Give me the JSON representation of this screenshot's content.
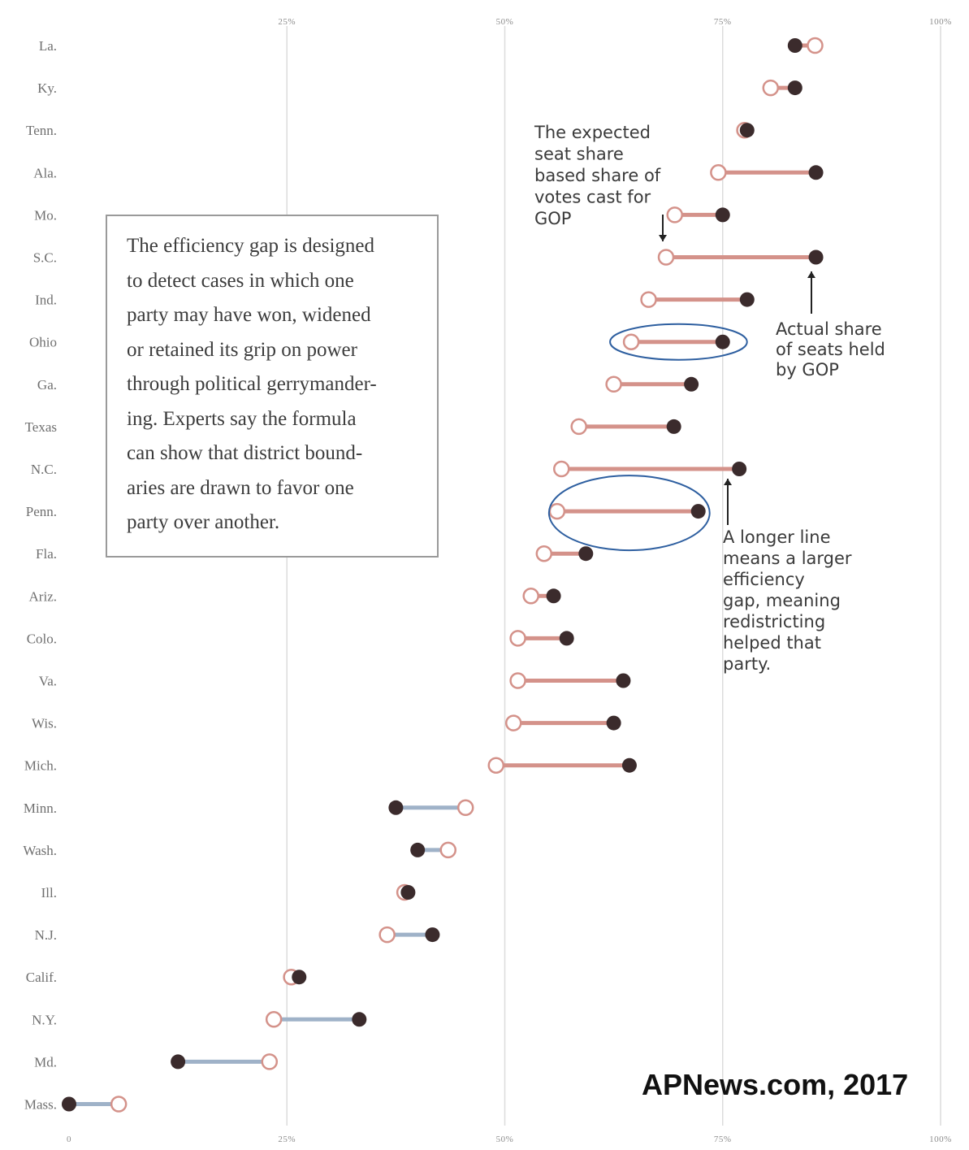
{
  "chart_data": {
    "type": "dumbbell",
    "x_ticks": [
      "25%",
      "50%",
      "75%",
      "100%"
    ],
    "x_ticks_bottom": [
      "0",
      "25%",
      "50%",
      "75%",
      "100%"
    ],
    "xlim": [
      0,
      100
    ],
    "grid": true,
    "colors": {
      "gop_line": "#d4928a",
      "dem_line": "#9fb2c8",
      "actual_dot": "#3b2b2c",
      "expected_dot_stroke": "#d4928a",
      "grid": "#dcdcdc",
      "highlight_ellipse": "#2e5fa0"
    },
    "states": [
      {
        "state": "La.",
        "expected": 85.6,
        "actual": 83.3,
        "party": "gop"
      },
      {
        "state": "Ky.",
        "expected": 80.5,
        "actual": 83.3,
        "party": "gop"
      },
      {
        "state": "Tenn.",
        "expected": 77.5,
        "actual": 77.8,
        "party": "gop"
      },
      {
        "state": "Ala.",
        "expected": 74.5,
        "actual": 85.7,
        "party": "gop"
      },
      {
        "state": "Mo.",
        "expected": 69.5,
        "actual": 75.0,
        "party": "gop"
      },
      {
        "state": "S.C.",
        "expected": 68.5,
        "actual": 85.7,
        "party": "gop"
      },
      {
        "state": "Ind.",
        "expected": 66.5,
        "actual": 77.8,
        "party": "gop"
      },
      {
        "state": "Ohio",
        "expected": 64.5,
        "actual": 75.0,
        "party": "gop",
        "highlighted": true
      },
      {
        "state": "Ga.",
        "expected": 62.5,
        "actual": 71.4,
        "party": "gop"
      },
      {
        "state": "Texas",
        "expected": 58.5,
        "actual": 69.4,
        "party": "gop"
      },
      {
        "state": "N.C.",
        "expected": 56.5,
        "actual": 76.9,
        "party": "gop"
      },
      {
        "state": "Penn.",
        "expected": 56.0,
        "actual": 72.2,
        "party": "gop",
        "highlighted": true
      },
      {
        "state": "Fla.",
        "expected": 54.5,
        "actual": 59.3,
        "party": "gop"
      },
      {
        "state": "Ariz.",
        "expected": 53.0,
        "actual": 55.6,
        "party": "gop"
      },
      {
        "state": "Colo.",
        "expected": 51.5,
        "actual": 57.1,
        "party": "gop"
      },
      {
        "state": "Va.",
        "expected": 51.5,
        "actual": 63.6,
        "party": "gop"
      },
      {
        "state": "Wis.",
        "expected": 51.0,
        "actual": 62.5,
        "party": "gop"
      },
      {
        "state": "Mich.",
        "expected": 49.0,
        "actual": 64.3,
        "party": "gop"
      },
      {
        "state": "Minn.",
        "expected": 45.5,
        "actual": 37.5,
        "party": "dem"
      },
      {
        "state": "Wash.",
        "expected": 43.5,
        "actual": 40.0,
        "party": "dem"
      },
      {
        "state": "Ill.",
        "expected": 38.5,
        "actual": 38.9,
        "party": "dem"
      },
      {
        "state": "N.J.",
        "expected": 36.5,
        "actual": 41.7,
        "party": "dem"
      },
      {
        "state": "Calif.",
        "expected": 25.5,
        "actual": 26.4,
        "party": "dem"
      },
      {
        "state": "N.Y.",
        "expected": 23.5,
        "actual": 33.3,
        "party": "dem"
      },
      {
        "state": "Md.",
        "expected": 23.0,
        "actual": 12.5,
        "party": "dem"
      },
      {
        "state": "Mass.",
        "expected": 5.7,
        "actual": 0.0,
        "party": "dem"
      }
    ],
    "annotations": {
      "expected_note": [
        "The expected",
        "seat share",
        "based share of",
        "votes cast for",
        "GOP"
      ],
      "actual_note": [
        "Actual share",
        "of seats held",
        "by GOP"
      ],
      "line_note": [
        "A longer line",
        "means a larger",
        "efficiency",
        "gap, meaning",
        "redistricting",
        "helped that",
        "party."
      ]
    }
  },
  "info_box": {
    "text": "The efficiency gap is designed\nto detect cases in which one\nparty may have won, widened\nor retained its grip on power\nthrough political gerrymander-\ning. Experts say the formula\ncan show that district bound-\naries are drawn to favor one\nparty over another."
  },
  "credit": "APNews.com, 2017"
}
